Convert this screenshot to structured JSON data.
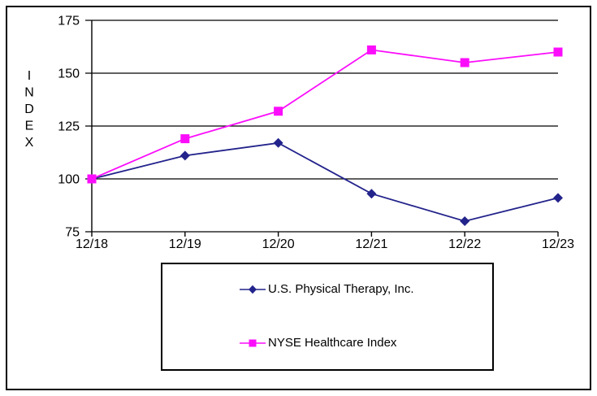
{
  "chart_data": {
    "type": "line",
    "title": "",
    "ylabel": "INDEX",
    "xlabel": "",
    "x": [
      "12/18",
      "12/19",
      "12/20",
      "12/21",
      "12/22",
      "12/23"
    ],
    "series": [
      {
        "name": "U.S. Physical Therapy, Inc.",
        "marker": "diamond",
        "color": "#23238C",
        "values": [
          100,
          111,
          117,
          93,
          80,
          91
        ]
      },
      {
        "name": "NYSE Healthcare Index",
        "marker": "square",
        "color": "#FB0DFB",
        "values": [
          100,
          119,
          132,
          161,
          155,
          160
        ]
      }
    ],
    "yticks": [
      75,
      100,
      125,
      150,
      175
    ],
    "ylim": [
      75,
      175
    ],
    "grid": "horizontal",
    "legend_position": "bottom-center-boxed",
    "axis_color": "#000000",
    "text_color": "#000000",
    "background_color": "#FFFFFF"
  }
}
